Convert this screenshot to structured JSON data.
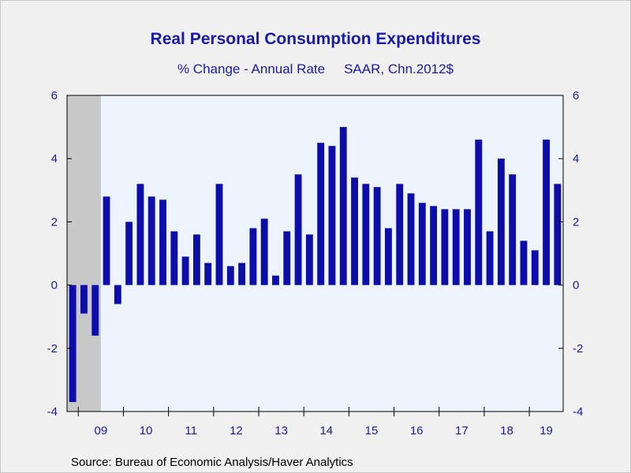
{
  "title": "Real Personal Consumption Expenditures",
  "subtitle_left": "% Change - Annual Rate",
  "subtitle_right": "SAAR, Chn.2012$",
  "source": "Source:  Bureau of Economic Analysis/Haver Analytics",
  "colors": {
    "bar": "#0d0daa",
    "plot_bg": "#eef4fe",
    "recession": "#c8c8c8",
    "text": "#1a1aa6"
  },
  "chart_data": {
    "type": "bar",
    "ylim": [
      -4,
      6
    ],
    "yticks": [
      -4,
      -2,
      0,
      2,
      4,
      6
    ],
    "ytick_labels": [
      "-4",
      "-2",
      "0",
      "2",
      "4",
      "6"
    ],
    "grid": false,
    "recession_shading": {
      "from_index": 0,
      "to_index": 2,
      "note": "shaded through 2009 Q2"
    },
    "year_labels": [
      "09",
      "10",
      "11",
      "12",
      "13",
      "14",
      "15",
      "16",
      "17",
      "18",
      "19"
    ],
    "categories": [
      "2008Q4",
      "2009Q1",
      "2009Q2",
      "2009Q3",
      "2009Q4",
      "2010Q1",
      "2010Q2",
      "2010Q3",
      "2010Q4",
      "2011Q1",
      "2011Q2",
      "2011Q3",
      "2011Q4",
      "2012Q1",
      "2012Q2",
      "2012Q3",
      "2012Q4",
      "2013Q1",
      "2013Q2",
      "2013Q3",
      "2013Q4",
      "2014Q1",
      "2014Q2",
      "2014Q3",
      "2014Q4",
      "2015Q1",
      "2015Q2",
      "2015Q3",
      "2015Q4",
      "2016Q1",
      "2016Q2",
      "2016Q3",
      "2016Q4",
      "2017Q1",
      "2017Q2",
      "2017Q3",
      "2017Q4",
      "2018Q1",
      "2018Q2",
      "2018Q3",
      "2018Q4",
      "2019Q1",
      "2019Q2",
      "2019Q3"
    ],
    "values": [
      -3.7,
      -0.9,
      -1.6,
      2.8,
      -0.6,
      2.0,
      3.2,
      2.8,
      2.7,
      1.7,
      0.9,
      1.6,
      0.7,
      3.2,
      0.6,
      0.7,
      1.8,
      2.1,
      0.3,
      1.7,
      3.5,
      1.6,
      4.5,
      4.4,
      5.0,
      3.4,
      3.2,
      3.1,
      1.8,
      3.2,
      2.9,
      2.6,
      2.5,
      2.4,
      2.4,
      2.4,
      4.6,
      1.7,
      4.0,
      3.5,
      1.4,
      1.1,
      4.6,
      3.2
    ]
  }
}
